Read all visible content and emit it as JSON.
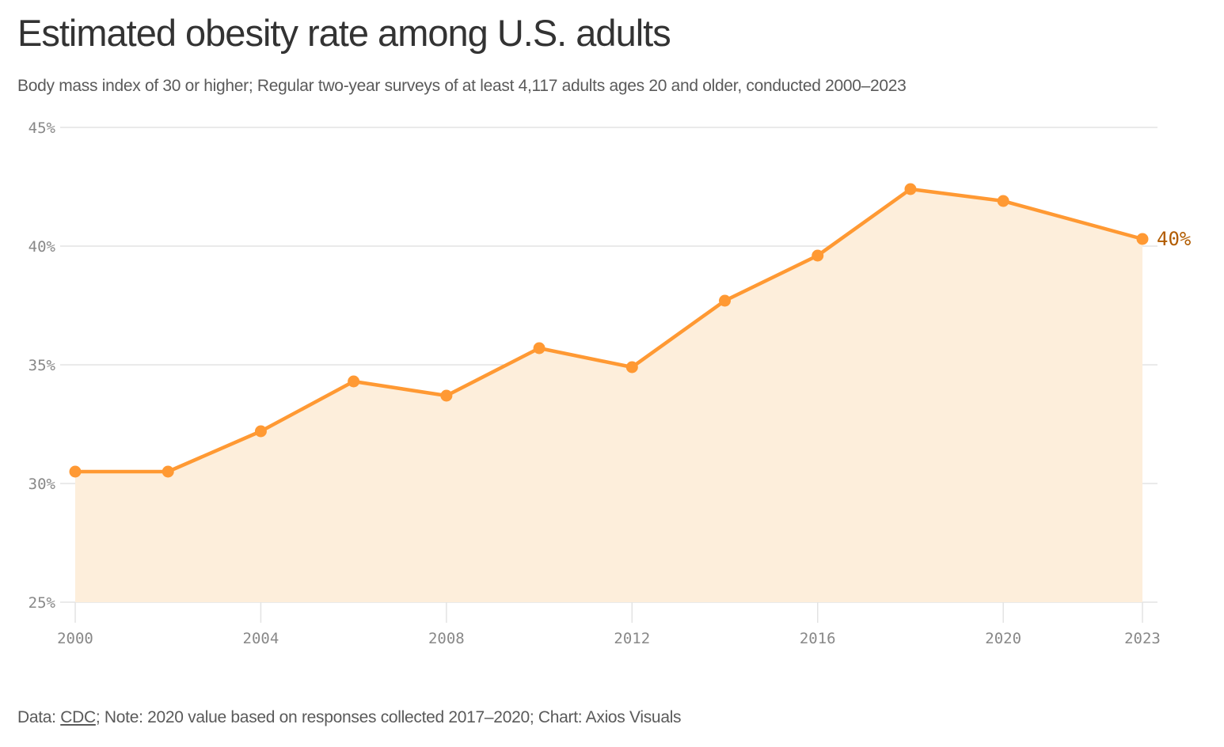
{
  "header": {
    "title": "Estimated obesity rate among U.S. adults",
    "subtitle": "Body mass index of 30 or higher; Regular two-year surveys of at least 4,117 adults ages 20 and older, conducted 2000–2023"
  },
  "footer": {
    "data_prefix": "Data: ",
    "source_link": "CDC",
    "rest": "; Note: 2020 value based on responses collected 2017–2020; Chart: Axios Visuals"
  },
  "colors": {
    "line": "#ff9933",
    "area": "#fdeedb",
    "end_label": "#b25c00",
    "grid": "#e3e3e3",
    "tick_text": "#888888"
  },
  "chart_data": {
    "type": "area",
    "title": "Estimated obesity rate among U.S. adults",
    "xlabel": "",
    "ylabel": "",
    "x": [
      2000,
      2002,
      2004,
      2006,
      2008,
      2010,
      2012,
      2014,
      2016,
      2018,
      2020,
      2023
    ],
    "series": [
      {
        "name": "Obesity rate",
        "values": [
          30.5,
          30.5,
          32.2,
          34.3,
          33.7,
          35.7,
          34.9,
          37.7,
          39.6,
          42.4,
          41.9,
          40.3
        ]
      }
    ],
    "xlim": [
      2000,
      2023
    ],
    "ylim": [
      25,
      45
    ],
    "yticks": [
      25,
      30,
      35,
      40,
      45
    ],
    "ytick_labels": [
      "25%",
      "30%",
      "35%",
      "40%",
      "45%"
    ],
    "xticks": [
      2000,
      2004,
      2008,
      2012,
      2016,
      2020,
      2023
    ],
    "xtick_labels": [
      "2000",
      "2004",
      "2008",
      "2012",
      "2016",
      "2020",
      "2023"
    ],
    "grid": true,
    "annotations": [
      {
        "x": 2023,
        "text": "40%"
      }
    ]
  }
}
